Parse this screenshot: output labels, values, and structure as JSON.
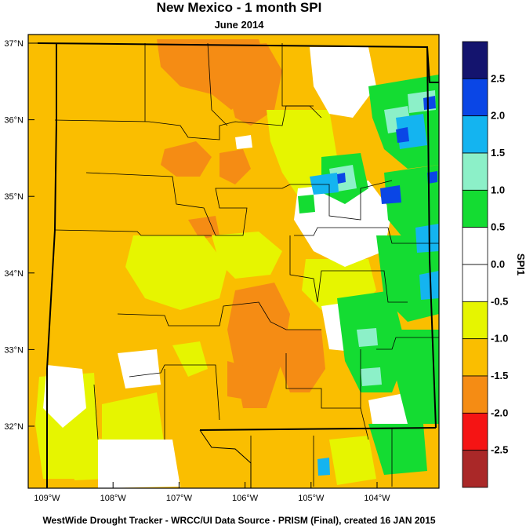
{
  "title": "New Mexico - 1 month SPI",
  "subtitle": "June 2014",
  "footer": "WestWide Drought Tracker - WRCC/UI  Data Source - PRISM (Final), created 16 JAN 2015",
  "map": {
    "lon_range": [
      -109.0,
      -103.0
    ],
    "lat_range": [
      31.2,
      37.0
    ],
    "lat_ticks": [
      {
        "value": 37,
        "label": "37°N"
      },
      {
        "value": 36,
        "label": "36°N"
      },
      {
        "value": 35,
        "label": "35°N"
      },
      {
        "value": 34,
        "label": "34°N"
      },
      {
        "value": 33,
        "label": "33°N"
      },
      {
        "value": 32,
        "label": "32°N"
      }
    ],
    "lon_ticks": [
      {
        "value": -109,
        "label": "109°W"
      },
      {
        "value": -108,
        "label": "108°W"
      },
      {
        "value": -107,
        "label": "107°W"
      },
      {
        "value": -106,
        "label": "106°W"
      },
      {
        "value": -105,
        "label": "105°W"
      },
      {
        "value": -104,
        "label": "104°W"
      }
    ],
    "dominant_category": "-1.5 to -1.0",
    "wetter_region": "east"
  },
  "legend": {
    "title": "SPI1",
    "bins": [
      {
        "color": "#14146e",
        "label": "2.5"
      },
      {
        "color": "#0a46e6",
        "label": "2.0"
      },
      {
        "color": "#14b4f0",
        "label": "1.5"
      },
      {
        "color": "#8cf0c8",
        "label": "1.0"
      },
      {
        "color": "#14dc32",
        "label": "0.5"
      },
      {
        "color": "#ffffff",
        "label": "0.0"
      },
      {
        "color": "#ffffff",
        "label": "-0.5"
      },
      {
        "color": "#e6f500",
        "label": "-1.0"
      },
      {
        "color": "#fabe00",
        "label": "-1.5"
      },
      {
        "color": "#f58c14",
        "label": "-2.0"
      },
      {
        "color": "#f51414",
        "label": "-2.5"
      },
      {
        "color": "#aa2828",
        "label": ""
      }
    ]
  }
}
